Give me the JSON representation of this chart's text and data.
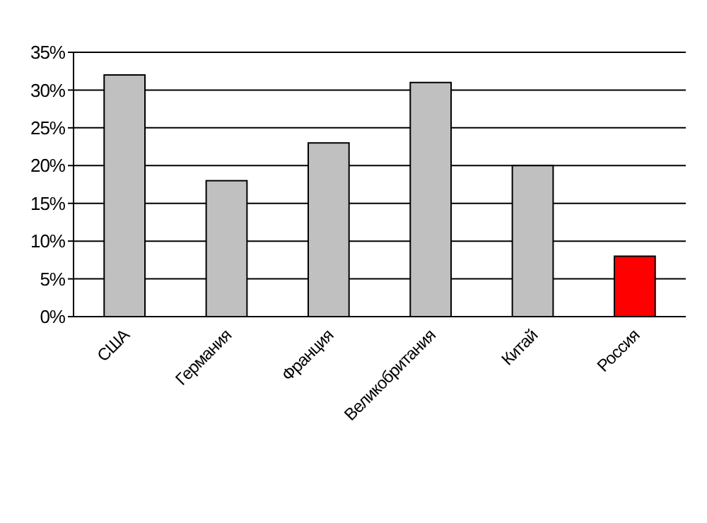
{
  "chart_data": {
    "type": "bar",
    "categories": [
      "США",
      "Германия",
      "Франция",
      "Великобритания",
      "Китай",
      "Россия"
    ],
    "values": [
      32,
      18,
      23,
      31,
      20,
      8
    ],
    "colors": [
      "#c0c0c0",
      "#c0c0c0",
      "#c0c0c0",
      "#c0c0c0",
      "#c0c0c0",
      "#ff0000"
    ],
    "ylim": [
      0,
      35
    ],
    "yticks": [
      {
        "value": 0,
        "label": "0%"
      },
      {
        "value": 5,
        "label": "5%"
      },
      {
        "value": 10,
        "label": "10%"
      },
      {
        "value": 15,
        "label": "15%"
      },
      {
        "value": 20,
        "label": "20%"
      },
      {
        "value": 25,
        "label": "25%"
      },
      {
        "value": 30,
        "label": "30%"
      },
      {
        "value": 35,
        "label": "35%"
      }
    ],
    "grid": "y"
  }
}
